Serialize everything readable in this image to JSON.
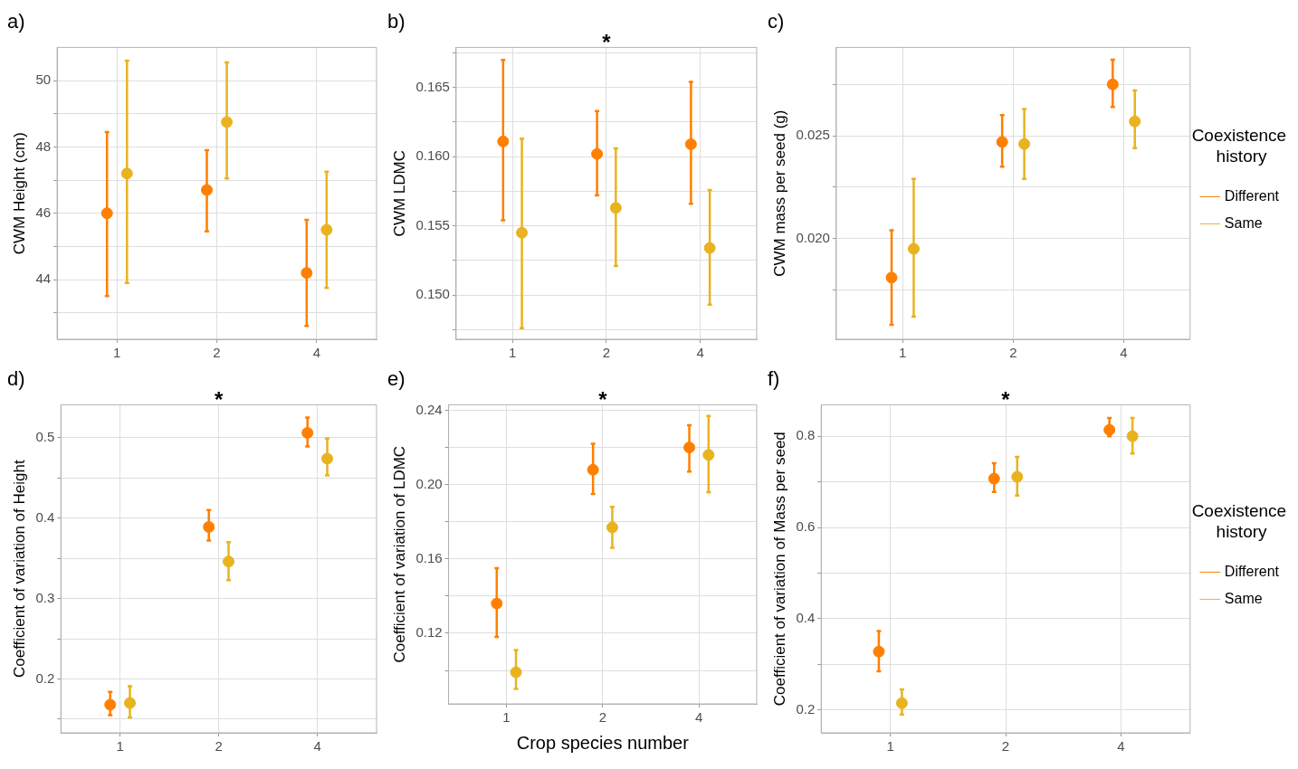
{
  "chart_data": [
    {
      "type": "scatter",
      "title": "a)",
      "ylabel": "CWM Height (cm)",
      "categories": [
        "1",
        "2",
        "4"
      ],
      "marker": "circle",
      "grid": true,
      "legend": false,
      "ylim": [
        42.2,
        51
      ],
      "yticks": [
        {
          "value": 43,
          "label": null
        },
        44,
        {
          "value": 45,
          "label": null
        },
        46,
        {
          "value": 47,
          "label": null
        },
        48,
        {
          "value": 49,
          "label": null
        },
        50
      ],
      "series": [
        {
          "color": "#ff7f00",
          "values": [
            46.0,
            46.7,
            44.2
          ],
          "errors": [
            [
              43.5,
              48.45
            ],
            [
              45.45,
              47.9
            ],
            [
              42.6,
              45.8
            ]
          ]
        },
        {
          "color": "#e9b320",
          "values": [
            47.2,
            48.75,
            45.5
          ],
          "errors": [
            [
              43.9,
              50.6
            ],
            [
              47.05,
              50.55
            ],
            [
              43.75,
              47.25
            ]
          ]
        }
      ]
    },
    {
      "type": "scatter",
      "title": "b)",
      "ylabel": "CWM LDMC",
      "categories": [
        "1",
        "2",
        "4"
      ],
      "marker": "circle",
      "grid": true,
      "legend": false,
      "ylim": [
        0.1468,
        0.1679
      ],
      "yticks": [
        {
          "value": 0.1475,
          "label": null
        },
        {
          "value": 0.15,
          "label": "0.150"
        },
        {
          "value": 0.1525,
          "label": null
        },
        0.155,
        {
          "value": 0.1575,
          "label": null
        },
        {
          "value": 0.16,
          "label": "0.160"
        },
        {
          "value": 0.1625,
          "label": null
        },
        0.165,
        {
          "value": 0.1675,
          "label": null
        }
      ],
      "annotations": [
        "*"
      ],
      "series": [
        {
          "color": "#ff7f00",
          "values": [
            0.1611,
            0.1602,
            0.1609
          ],
          "errors": [
            [
              0.1554,
              0.167
            ],
            [
              0.1572,
              0.1633
            ],
            [
              0.1566,
              0.1654
            ]
          ]
        },
        {
          "color": "#e9b320",
          "values": [
            0.1545,
            0.1563,
            0.1534
          ],
          "errors": [
            [
              0.1476,
              0.1613
            ],
            [
              0.1521,
              0.1606
            ],
            [
              0.1493,
              0.1576
            ]
          ]
        }
      ]
    },
    {
      "type": "scatter",
      "title": "c)",
      "ylabel": "CWM mass per seed (g)",
      "categories": [
        "1",
        "2",
        "4"
      ],
      "marker": "circle",
      "grid": true,
      "legend": "right",
      "legend_title": "Coexistence history",
      "ylim": [
        0.0151,
        0.0293
      ],
      "yticks": [
        {
          "value": 0.0175,
          "label": null
        },
        {
          "value": 0.02,
          "label": "0.020"
        },
        {
          "value": 0.0225,
          "label": null
        },
        0.025,
        {
          "value": 0.0275,
          "label": null
        }
      ],
      "series": [
        {
          "name": "Different",
          "color": "#ff7f00",
          "values": [
            0.0181,
            0.0247,
            0.0275
          ],
          "errors": [
            [
              0.0158,
              0.0204
            ],
            [
              0.0235,
              0.026
            ],
            [
              0.0264,
              0.0287
            ]
          ]
        },
        {
          "name": "Same",
          "color": "#e9b320",
          "values": [
            0.0195,
            0.0246,
            0.0257
          ],
          "errors": [
            [
              0.0162,
              0.0229
            ],
            [
              0.0229,
              0.0263
            ],
            [
              0.0244,
              0.0272
            ]
          ]
        }
      ]
    },
    {
      "type": "scatter",
      "title": "d)",
      "ylabel": "Coefficient of variation of Height",
      "categories": [
        "1",
        "2",
        "4"
      ],
      "marker": "circle",
      "grid": true,
      "legend": false,
      "ylim": [
        0.133,
        0.541
      ],
      "yticks": [
        {
          "value": 0.15,
          "label": null
        },
        0.2,
        {
          "value": 0.25,
          "label": null
        },
        0.3,
        {
          "value": 0.35,
          "label": null
        },
        0.4,
        {
          "value": 0.45,
          "label": null
        },
        0.5
      ],
      "annotations": [
        "*"
      ],
      "series": [
        {
          "color": "#ff7f00",
          "values": [
            0.168,
            0.389,
            0.506
          ],
          "errors": [
            [
              0.155,
              0.184
            ],
            [
              0.372,
              0.41
            ],
            [
              0.489,
              0.525
            ]
          ]
        },
        {
          "color": "#e9b320",
          "values": [
            0.17,
            0.346,
            0.474
          ],
          "errors": [
            [
              0.152,
              0.191
            ],
            [
              0.323,
              0.37
            ],
            [
              0.453,
              0.499
            ]
          ]
        }
      ]
    },
    {
      "type": "scatter",
      "title": "e)",
      "ylabel": "Coefficient of variation of LDMC",
      "xlabel": "Crop species number",
      "categories": [
        "1",
        "2",
        "4"
      ],
      "marker": "circle",
      "grid": true,
      "legend": false,
      "ylim": [
        0.082,
        0.243
      ],
      "yticks": [
        {
          "value": 0.1,
          "label": null
        },
        0.12,
        {
          "value": 0.14,
          "label": null
        },
        0.16,
        {
          "value": 0.18,
          "label": null
        },
        {
          "value": 0.2,
          "label": "0.20"
        },
        {
          "value": 0.22,
          "label": null
        },
        0.24
      ],
      "annotations": [
        "*"
      ],
      "series": [
        {
          "color": "#ff7f00",
          "values": [
            0.136,
            0.208,
            0.22
          ],
          "errors": [
            [
              0.118,
              0.155
            ],
            [
              0.195,
              0.222
            ],
            [
              0.207,
              0.232
            ]
          ]
        },
        {
          "color": "#e9b320",
          "values": [
            0.099,
            0.177,
            0.216
          ],
          "errors": [
            [
              0.09,
              0.111
            ],
            [
              0.166,
              0.188
            ],
            [
              0.196,
              0.237
            ]
          ]
        }
      ]
    },
    {
      "type": "scatter",
      "title": "f)",
      "ylabel": "Coefficient of variation of Mass per seed",
      "categories": [
        "1",
        "2",
        "4"
      ],
      "marker": "circle",
      "grid": true,
      "legend": "right",
      "legend_title": "Coexistence history",
      "ylim": [
        0.15,
        0.869
      ],
      "yticks": [
        0.2,
        {
          "value": 0.3,
          "label": null
        },
        0.4,
        {
          "value": 0.5,
          "label": null
        },
        0.6,
        {
          "value": 0.7,
          "label": null
        },
        0.8
      ],
      "annotations": [
        "*"
      ],
      "series": [
        {
          "name": "Different",
          "color": "#ff7f00",
          "values": [
            0.328,
            0.707,
            0.814
          ],
          "errors": [
            [
              0.285,
              0.373
            ],
            [
              0.678,
              0.741
            ],
            [
              0.8,
              0.84
            ]
          ]
        },
        {
          "name": "Same",
          "color": "#e9b320",
          "values": [
            0.215,
            0.711,
            0.8
          ],
          "errors": [
            [
              0.19,
              0.245
            ],
            [
              0.67,
              0.755
            ],
            [
              0.762,
              0.84
            ]
          ]
        }
      ]
    }
  ]
}
